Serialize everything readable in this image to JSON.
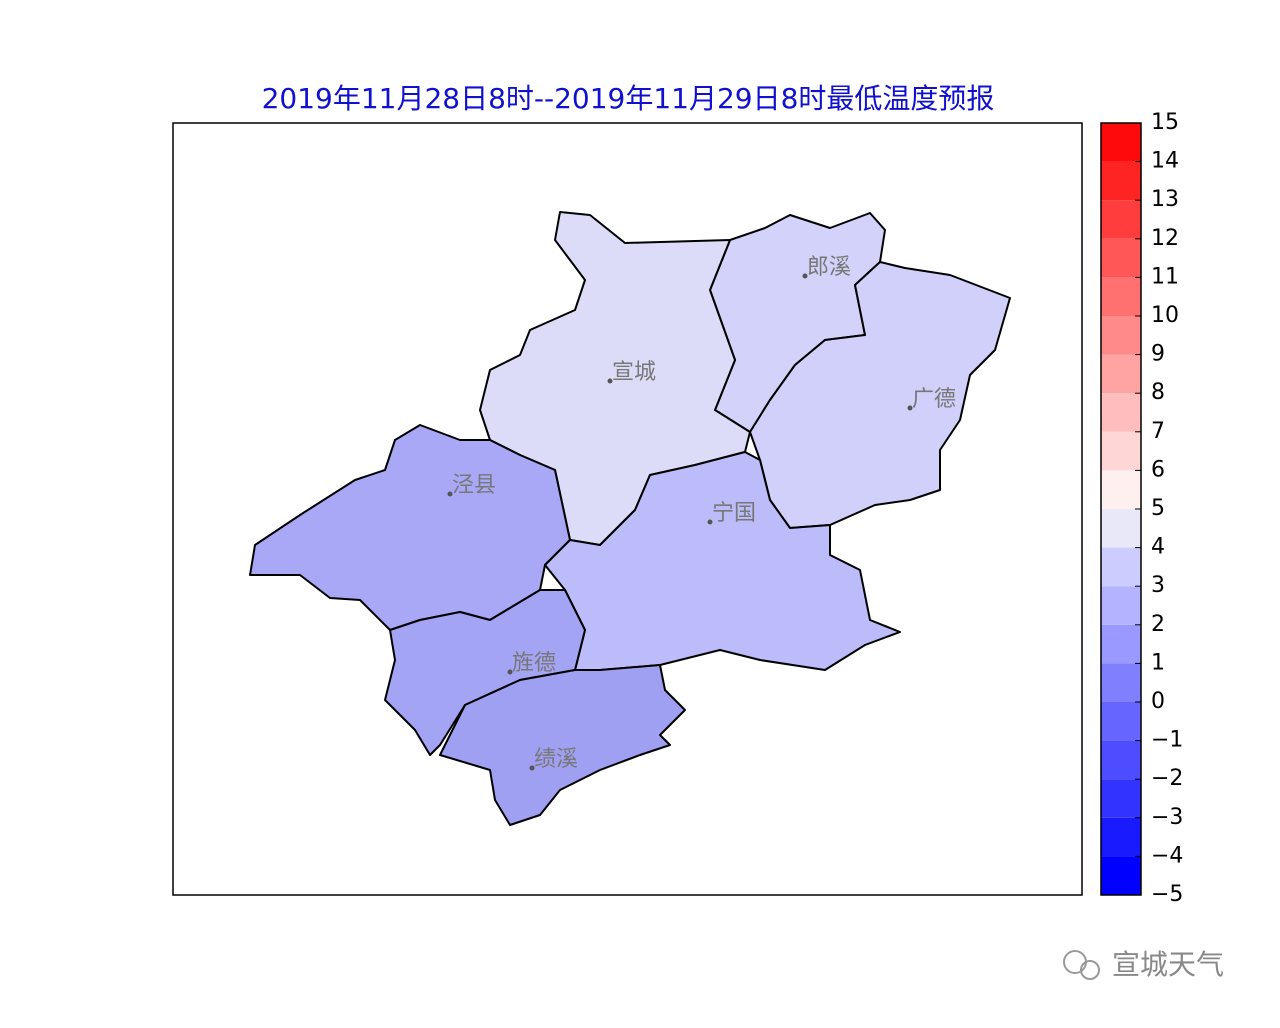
{
  "title": "2019年11月28日8时--2019年11月29日8时最低温度预报",
  "cities": [
    {
      "label": "郎溪"
    },
    {
      "label": "宣城"
    },
    {
      "label": "广德"
    },
    {
      "label": "泾县"
    },
    {
      "label": "宁国"
    },
    {
      "label": "旌德"
    },
    {
      "label": "绩溪"
    }
  ],
  "colorbar": {
    "lim": [
      -5,
      15
    ],
    "ticks": [
      {
        "value": -5,
        "label": "−5"
      },
      {
        "value": -4,
        "label": "−4"
      },
      {
        "value": -3,
        "label": "−3"
      },
      {
        "value": -2,
        "label": "−2"
      },
      {
        "value": -1,
        "label": "−1"
      },
      0,
      1,
      2,
      3,
      4,
      5,
      6,
      7,
      8,
      9,
      10,
      11,
      12,
      13,
      14,
      15
    ],
    "colors": [
      "#0000ff",
      "#1a1aff",
      "#3333ff",
      "#4d4dff",
      "#6666ff",
      "#8080ff",
      "#9999ff",
      "#b3b3ff",
      "#ccccff",
      "#e8e8f8",
      "#fff0f0",
      "#ffd6d6",
      "#ffbdbd",
      "#ffa3a3",
      "#ff8a8a",
      "#ff7070",
      "#ff5757",
      "#ff3d3d",
      "#ff2424",
      "#ff0a0a"
    ]
  },
  "watermark": "宣城天气"
}
